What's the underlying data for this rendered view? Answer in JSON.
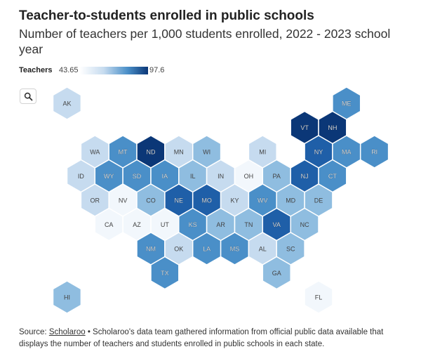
{
  "title": "Teacher-to-students enrolled in public schools",
  "subtitle": "Number of teachers per 1,000 students enrolled, 2022 - 2023 school year",
  "legend": {
    "title": "Teachers",
    "min": "43.65",
    "max": "97.6"
  },
  "zoom_icon": "search-icon",
  "source": {
    "prefix": "Source: ",
    "link": "Scholaroo",
    "text": " • Scholaroo's data team gathered information from official public data available that displays the number of teachers and students enrolled in public schools in each state."
  },
  "colors": {
    "c1": "#f2f7fc",
    "c2": "#c6dbef",
    "c3": "#8fbde0",
    "c4": "#4a8fc8",
    "c5": "#1f5fa8",
    "c6": "#0b3777"
  },
  "chart_data": {
    "type": "hex-tile-map",
    "range": [
      43.65,
      97.6
    ],
    "states": [
      {
        "abbr": "AK",
        "col": 1,
        "row": 0,
        "level": 2
      },
      {
        "abbr": "ME",
        "col": 11,
        "row": 0,
        "level": 4
      },
      {
        "abbr": "VT",
        "col": 10,
        "row": 1,
        "level": 6
      },
      {
        "abbr": "NH",
        "col": 11,
        "row": 1,
        "level": 6
      },
      {
        "abbr": "WA",
        "col": 2,
        "row": 2,
        "level": 2
      },
      {
        "abbr": "MT",
        "col": 3,
        "row": 2,
        "level": 4
      },
      {
        "abbr": "ND",
        "col": 4,
        "row": 2,
        "level": 6
      },
      {
        "abbr": "MN",
        "col": 5,
        "row": 2,
        "level": 2
      },
      {
        "abbr": "WI",
        "col": 6,
        "row": 2,
        "level": 3
      },
      {
        "abbr": "MI",
        "col": 8,
        "row": 2,
        "level": 2
      },
      {
        "abbr": "NY",
        "col": 10,
        "row": 2,
        "level": 5
      },
      {
        "abbr": "MA",
        "col": 11,
        "row": 2,
        "level": 4
      },
      {
        "abbr": "RI",
        "col": 12,
        "row": 2,
        "level": 4
      },
      {
        "abbr": "ID",
        "col": 2,
        "row": 3,
        "level": 2
      },
      {
        "abbr": "WY",
        "col": 3,
        "row": 3,
        "level": 4
      },
      {
        "abbr": "SD",
        "col": 4,
        "row": 3,
        "level": 4
      },
      {
        "abbr": "IA",
        "col": 5,
        "row": 3,
        "level": 4
      },
      {
        "abbr": "IL",
        "col": 6,
        "row": 3,
        "level": 3
      },
      {
        "abbr": "IN",
        "col": 7,
        "row": 3,
        "level": 2
      },
      {
        "abbr": "OH",
        "col": 8,
        "row": 3,
        "level": 1
      },
      {
        "abbr": "PA",
        "col": 9,
        "row": 3,
        "level": 3
      },
      {
        "abbr": "NJ",
        "col": 10,
        "row": 3,
        "level": 5
      },
      {
        "abbr": "CT",
        "col": 11,
        "row": 3,
        "level": 4
      },
      {
        "abbr": "OR",
        "col": 2,
        "row": 4,
        "level": 2
      },
      {
        "abbr": "NV",
        "col": 3,
        "row": 4,
        "level": 1
      },
      {
        "abbr": "CO",
        "col": 4,
        "row": 4,
        "level": 3
      },
      {
        "abbr": "NE",
        "col": 5,
        "row": 4,
        "level": 5
      },
      {
        "abbr": "MO",
        "col": 6,
        "row": 4,
        "level": 5
      },
      {
        "abbr": "KY",
        "col": 7,
        "row": 4,
        "level": 2
      },
      {
        "abbr": "WV",
        "col": 8,
        "row": 4,
        "level": 4
      },
      {
        "abbr": "MD",
        "col": 9,
        "row": 4,
        "level": 3
      },
      {
        "abbr": "DE",
        "col": 10,
        "row": 4,
        "level": 3
      },
      {
        "abbr": "CA",
        "col": 3,
        "row": 5,
        "level": 1
      },
      {
        "abbr": "AZ",
        "col": 4,
        "row": 5,
        "level": 1
      },
      {
        "abbr": "UT",
        "col": 5,
        "row": 5,
        "level": 1
      },
      {
        "abbr": "KS",
        "col": 6,
        "row": 5,
        "level": 4
      },
      {
        "abbr": "AR",
        "col": 7,
        "row": 5,
        "level": 3
      },
      {
        "abbr": "TN",
        "col": 8,
        "row": 5,
        "level": 3
      },
      {
        "abbr": "VA",
        "col": 9,
        "row": 5,
        "level": 5
      },
      {
        "abbr": "NC",
        "col": 10,
        "row": 5,
        "level": 3
      },
      {
        "abbr": "NM",
        "col": 4,
        "row": 6,
        "level": 4
      },
      {
        "abbr": "OK",
        "col": 5,
        "row": 6,
        "level": 2
      },
      {
        "abbr": "LA",
        "col": 6,
        "row": 6,
        "level": 4
      },
      {
        "abbr": "MS",
        "col": 7,
        "row": 6,
        "level": 4
      },
      {
        "abbr": "AL",
        "col": 8,
        "row": 6,
        "level": 2
      },
      {
        "abbr": "SC",
        "col": 9,
        "row": 6,
        "level": 3
      },
      {
        "abbr": "TX",
        "col": 5,
        "row": 7,
        "level": 4
      },
      {
        "abbr": "GA",
        "col": 9,
        "row": 7,
        "level": 3
      },
      {
        "abbr": "HI",
        "col": 1,
        "row": 8,
        "level": 3
      },
      {
        "abbr": "FL",
        "col": 10,
        "row": 8,
        "level": 1
      }
    ]
  }
}
